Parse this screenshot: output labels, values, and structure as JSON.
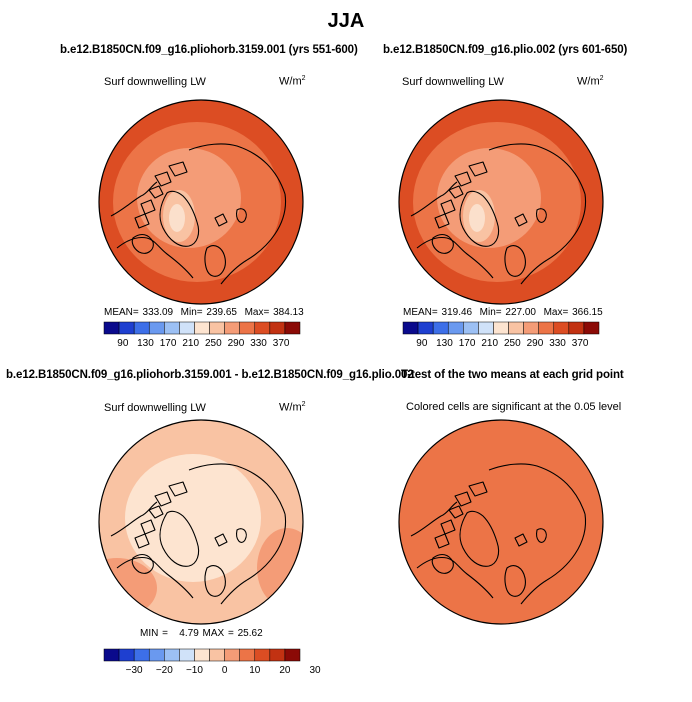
{
  "title": "JJA",
  "colors": {
    "scale": [
      "#0a0a8c",
      "#1e3fd0",
      "#3d6fe8",
      "#6a99ef",
      "#9cc0f4",
      "#d0e2f9",
      "#fde4d0",
      "#f9c3a3",
      "#f49c77",
      "#ec7447",
      "#dc4d23",
      "#c23212",
      "#8b0a06"
    ],
    "fill_upper": "#e85b2c",
    "fill_diff": "#f9c3a3",
    "fill_ttest": "#ec7447",
    "ice_pale": "#fbe0cc",
    "coast": "#000000"
  },
  "panels": [
    {
      "title": "b.e12.B1850CN.f09_g16.pliohorb.3159.001 (yrs 551-600)",
      "left_label": "Surf downwelling LW",
      "units_base": "W/m",
      "units_sup": "2",
      "stats": {
        "mean_label": "MEAN=",
        "mean": "333.09",
        "min_label": "Min=",
        "min": "239.65",
        "max_label": "Max=",
        "max": "384.13"
      },
      "colorbar": {
        "ticks": [
          "90",
          "130",
          "170",
          "210",
          "250",
          "290",
          "330",
          "370"
        ]
      }
    },
    {
      "title": "b.e12.B1850CN.f09_g16.plio.002 (yrs 601-650)",
      "left_label": "Surf downwelling LW",
      "units_base": "W/m",
      "units_sup": "2",
      "stats": {
        "mean_label": "MEAN=",
        "mean": "319.46",
        "min_label": "Min=",
        "min": "227.00",
        "max_label": "Max=",
        "max": "366.15"
      },
      "colorbar": {
        "ticks": [
          "90",
          "130",
          "170",
          "210",
          "250",
          "290",
          "330",
          "370"
        ]
      }
    },
    {
      "title": "b.e12.B1850CN.f09_g16.pliohorb.3159.001 - b.e12.B1850CN.f09_g16.plio.002",
      "left_label": "Surf downwelling LW",
      "units_base": "W/m",
      "units_sup": "2",
      "stats": {
        "min_label": "MIN =",
        "min": "4.79",
        "max_label": "MAX =",
        "max": "25.62"
      },
      "colorbar": {
        "ticks": [
          "−30",
          "−20",
          "−10",
          "0",
          "10",
          "20",
          "30"
        ]
      }
    },
    {
      "title": "T-test of the two means at each grid point",
      "center_label": "Colored cells are significant at the 0.05 level"
    }
  ]
}
